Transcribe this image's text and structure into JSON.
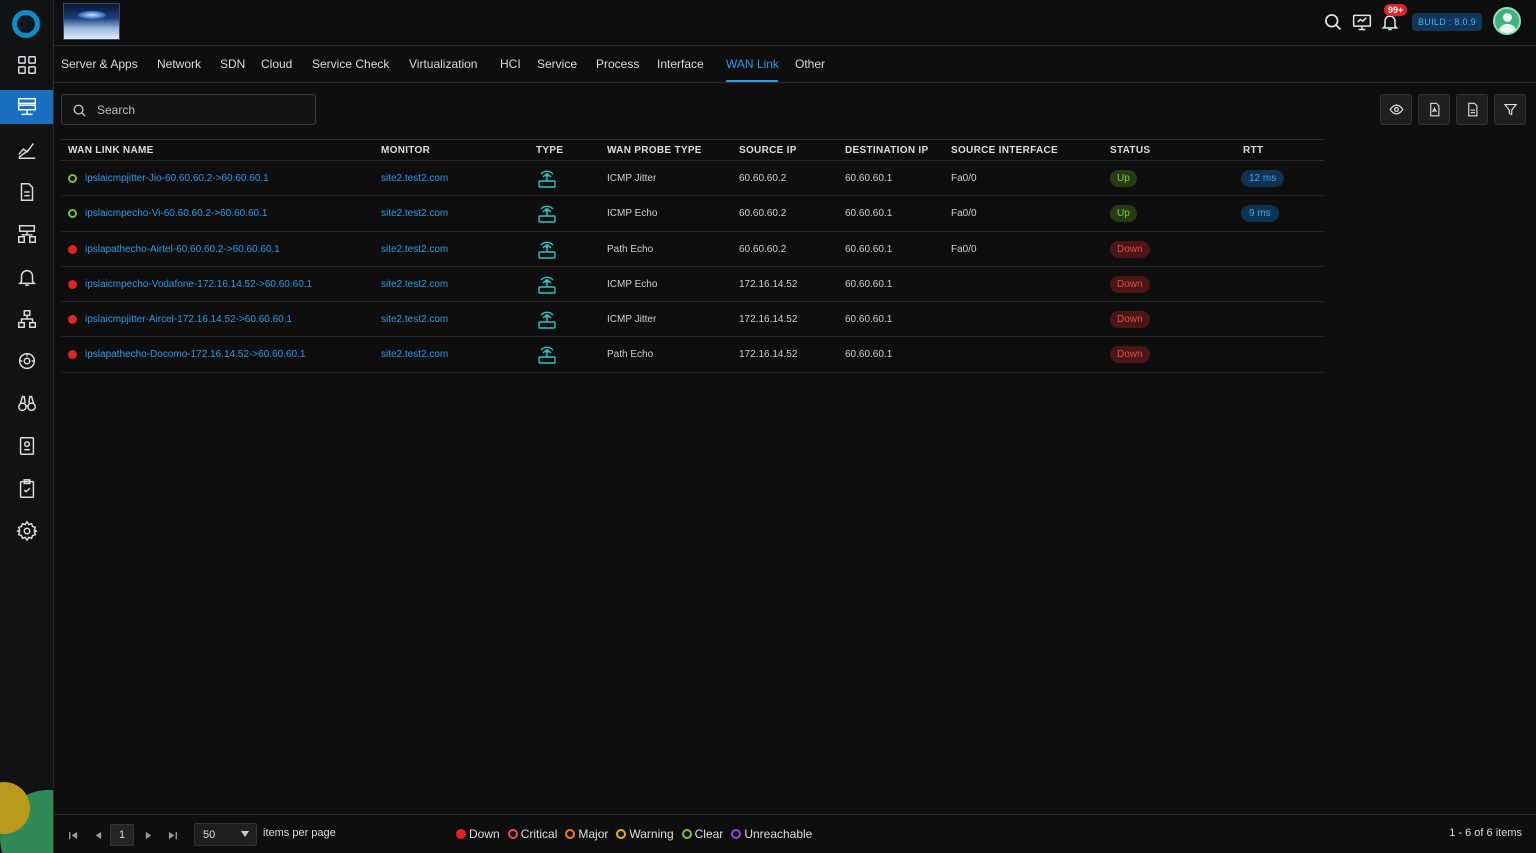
{
  "header": {
    "notifications_badge": "99+",
    "build_label": "BUILD : 8.0.9"
  },
  "tabs": [
    {
      "label": "Server & Apps"
    },
    {
      "label": "Network"
    },
    {
      "label": "SDN"
    },
    {
      "label": "Cloud"
    },
    {
      "label": "Service Check"
    },
    {
      "label": "Virtualization"
    },
    {
      "label": "HCI"
    },
    {
      "label": "Service"
    },
    {
      "label": "Process"
    },
    {
      "label": "Interface"
    },
    {
      "label": "WAN Link"
    },
    {
      "label": "Other"
    }
  ],
  "active_tab": "WAN Link",
  "search": {
    "placeholder": "Search",
    "value": ""
  },
  "table": {
    "columns": [
      "WAN LINK NAME",
      "MONITOR",
      "TYPE",
      "WAN PROBE TYPE",
      "SOURCE IP",
      "DESTINATION IP",
      "SOURCE INTERFACE",
      "STATUS",
      "RTT"
    ],
    "rows": [
      {
        "name": "ipslaicmpjitter-Jio-60.60.60.2->60.60.60.1",
        "monitor": "site2.test2.com",
        "probe": "ICMP Jitter",
        "src": "60.60.60.2",
        "dst": "60.60.60.1",
        "iface": "Fa0/0",
        "status": "Up",
        "rtt": "12 ms"
      },
      {
        "name": "ipslaicmpecho-Vi-60.60.60.2->60.60.60.1",
        "monitor": "site2.test2.com",
        "probe": "ICMP Echo",
        "src": "60.60.60.2",
        "dst": "60.60.60.1",
        "iface": "Fa0/0",
        "status": "Up",
        "rtt": "9 ms"
      },
      {
        "name": "ipslapathecho-Airtel-60.60.60.2->60.60.60.1",
        "monitor": "site2.test2.com",
        "probe": "Path Echo",
        "src": "60.60.60.2",
        "dst": "60.60.60.1",
        "iface": "Fa0/0",
        "status": "Down",
        "rtt": ""
      },
      {
        "name": "ipslaicmpecho-Vodafone-172.16.14.52->60.60.60.1",
        "monitor": "site2.test2.com",
        "probe": "ICMP Echo",
        "src": "172.16.14.52",
        "dst": "60.60.60.1",
        "iface": "",
        "status": "Down",
        "rtt": ""
      },
      {
        "name": "ipslaicmpjitter-Aircel-172.16.14.52->60.60.60.1",
        "monitor": "site2.test2.com",
        "probe": "ICMP Jitter",
        "src": "172.16.14.52",
        "dst": "60.60.60.1",
        "iface": "",
        "status": "Down",
        "rtt": ""
      },
      {
        "name": "ipslapathecho-Docomo-172.16.14.52->60.60.60.1",
        "monitor": "site2.test2.com",
        "probe": "Path Echo",
        "src": "172.16.14.52",
        "dst": "60.60.60.1",
        "iface": "",
        "status": "Down",
        "rtt": ""
      }
    ]
  },
  "pagination": {
    "page": "1",
    "per_page": "50",
    "per_page_label": "items per page",
    "summary": "1 - 6 of 6 items"
  },
  "legend": [
    {
      "label": "Down",
      "color": "#e02424"
    },
    {
      "label": "Critical",
      "color": "#f04a4a"
    },
    {
      "label": "Major",
      "color": "#f07b22"
    },
    {
      "label": "Warning",
      "color": "#e8b21c"
    },
    {
      "label": "Clear",
      "color": "#7ac142"
    },
    {
      "label": "Unreachable",
      "color": "#9a4ad8"
    }
  ],
  "colors": {
    "accent": "#2b9be8",
    "up": "#7ac142",
    "down": "#e02424"
  },
  "icons": {
    "sidebar": [
      "dashboard-grid-icon",
      "monitor-icon",
      "trend-chart-icon",
      "report-icon",
      "topology-icon",
      "alert-bell-icon",
      "hierarchy-icon",
      "discovery-icon",
      "binoculars-icon",
      "inventory-icon",
      "checklist-icon",
      "settings-gear-icon"
    ],
    "header": [
      "search-icon",
      "remote-display-icon",
      "notification-bell-icon"
    ],
    "toolbar": [
      "eye-icon",
      "pdf-export-icon",
      "csv-export-icon",
      "filter-icon"
    ]
  }
}
